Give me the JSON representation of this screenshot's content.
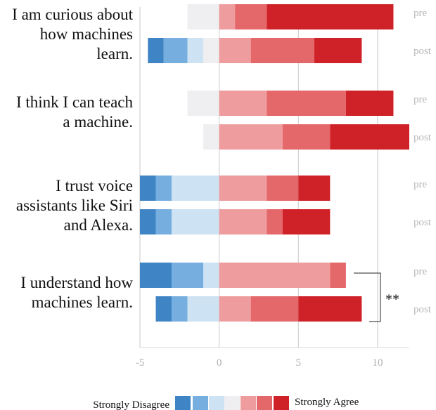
{
  "chart_data": {
    "type": "bar",
    "subtype": "diverging-stacked-likert",
    "xlim": [
      -5,
      12
    ],
    "xticks": [
      -5,
      0,
      5,
      10
    ],
    "grid": "vertical",
    "categories": [
      "I am curious about how machines learn.",
      "I think I can teach a machine.",
      "I trust voice assistants like Siri and Alexa.",
      "I understand how machines learn."
    ],
    "row_labels": [
      "pre",
      "post"
    ],
    "levels": [
      "Strongly Disagree",
      "",
      "",
      "",
      "",
      "",
      "Strongly Agree"
    ],
    "colors": [
      "#3f84c5",
      "#76aee0",
      "#cde2f3",
      "#efeff1",
      "#ee9c9e",
      "#e4676a",
      "#cf2128"
    ],
    "groups": [
      {
        "question_lines": [
          "I am curious about",
          "how machines",
          "learn."
        ],
        "pre": [
          0,
          0,
          0,
          2,
          1,
          2,
          8
        ],
        "post": [
          1,
          1.5,
          1,
          1,
          2,
          4,
          3
        ]
      },
      {
        "question_lines": [
          "I think I can teach",
          "a machine."
        ],
        "pre": [
          0,
          0,
          0,
          2,
          3,
          5,
          3
        ],
        "post": [
          0,
          0,
          0,
          1,
          4,
          3,
          5
        ]
      },
      {
        "question_lines": [
          "I trust voice",
          "assistants like Siri",
          "and Alexa."
        ],
        "pre": [
          1,
          1,
          3,
          0,
          3,
          2,
          2
        ],
        "post": [
          1,
          1,
          3,
          0,
          3,
          1,
          3
        ]
      },
      {
        "question_lines": [
          "I understand how",
          "machines learn."
        ],
        "pre": [
          2,
          2,
          1,
          0,
          7,
          1,
          0
        ],
        "post": [
          1,
          1,
          2,
          0,
          2,
          3,
          4
        ]
      }
    ],
    "significance": {
      "group_index": 3,
      "label": "**"
    },
    "legend": {
      "left_label": "Strongly Disagree",
      "right_label": "Strongly Agree",
      "position": "bottom"
    }
  }
}
